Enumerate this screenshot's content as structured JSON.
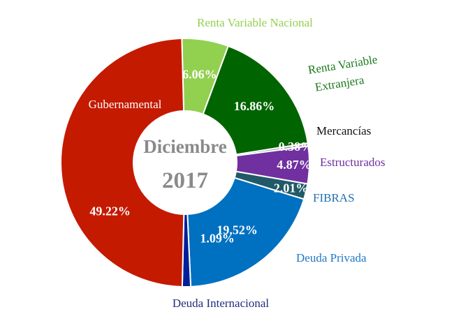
{
  "chart_data": {
    "type": "pie",
    "title": "Diciembre",
    "subtitle": "2017",
    "slices": [
      {
        "name": "Renta Variable Nacional",
        "value": 6.06,
        "value_label": "6.06%",
        "color": "#92d050",
        "label_color": "#92d050",
        "ext_lines": [
          "Renta Variable Nacional"
        ]
      },
      {
        "name": "Renta Variable Extranjera",
        "value": 16.86,
        "value_label": "16.86%",
        "color": "#006400",
        "label_color": "#1a7a1a",
        "ext_lines": [
          "Renta Variable",
          "Extranjera"
        ]
      },
      {
        "name": "Mercancías",
        "value": 0.38,
        "value_label": "0.38%",
        "color": "#a0a0a0",
        "label_color": "#111111",
        "ext_lines": [
          "Mercancías"
        ]
      },
      {
        "name": "Estructurados",
        "value": 4.87,
        "value_label": "4.87%",
        "color": "#7030a0",
        "label_color": "#7030a0",
        "ext_lines": [
          "Estructurados"
        ]
      },
      {
        "name": "FIBRAS",
        "value": 2.01,
        "value_label": "2.01%",
        "color": "#215968",
        "label_color": "#1f6fb0",
        "ext_lines": [
          "FIBRAS"
        ]
      },
      {
        "name": "Deuda Privada",
        "value": 19.52,
        "value_label": "19.52%",
        "color": "#0070c0",
        "label_color": "#1f77c8",
        "ext_lines": [
          "Deuda Privada"
        ]
      },
      {
        "name": "Deuda Internacional",
        "value": 1.09,
        "value_label": "1.09%",
        "color": "#001f9a",
        "label_color": "#1f2f7a",
        "ext_lines": [
          "Deuda Internacional"
        ]
      },
      {
        "name": "Gubernamental",
        "value": 49.22,
        "value_label": "49.22%",
        "color": "#c41a00",
        "label_color": "#ffffff",
        "ext_lines": [
          "Gubernamental"
        ]
      }
    ]
  }
}
